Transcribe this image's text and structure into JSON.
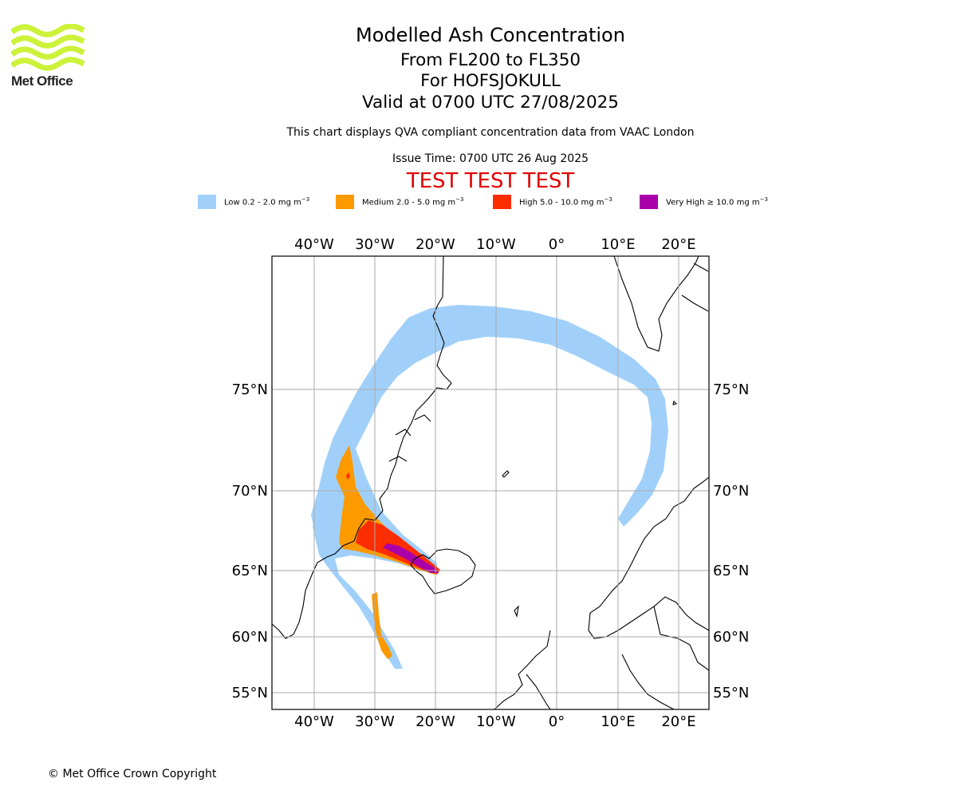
{
  "header": {
    "logo_text": "Met Office",
    "title": "Modelled Ash Concentration",
    "levels": "From FL200 to FL350",
    "volcano": "For HOFSJOKULL",
    "valid": "Valid at 0700 UTC 27/08/2025",
    "description": "This chart displays QVA compliant concentration data from VAAC London",
    "issue": "Issue Time: 0700 UTC 26 Aug 2025",
    "test": "TEST TEST TEST"
  },
  "legend": [
    {
      "label": "Low 0.2 - 2.0 mg m",
      "color": "#a0d0fa"
    },
    {
      "label": "Medium 2.0 - 5.0 mg m",
      "color": "#fc9a00"
    },
    {
      "label": "High 5.0 - 10.0 mg m",
      "color": "#fc2d00"
    },
    {
      "label": "Very High  ≥  10.0 mg m",
      "color": "#aa00aa"
    }
  ],
  "legend_unit_exp": "−3",
  "axes": {
    "lon_top": [
      "40°W",
      "30°W",
      "20°W",
      "10°W",
      "0°",
      "10°E",
      "20°E"
    ],
    "lon_bottom": [
      "40°W",
      "30°W",
      "20°W",
      "10°W",
      "0°",
      "10°E",
      "20°E"
    ],
    "lat_left": [
      "75°N",
      "70°N",
      "65°N",
      "60°N",
      "55°N"
    ],
    "lat_right": [
      "75°N",
      "70°N",
      "65°N",
      "60°N",
      "55°N"
    ]
  },
  "footer": {
    "copyright": "© Met Office Crown Copyright"
  }
}
